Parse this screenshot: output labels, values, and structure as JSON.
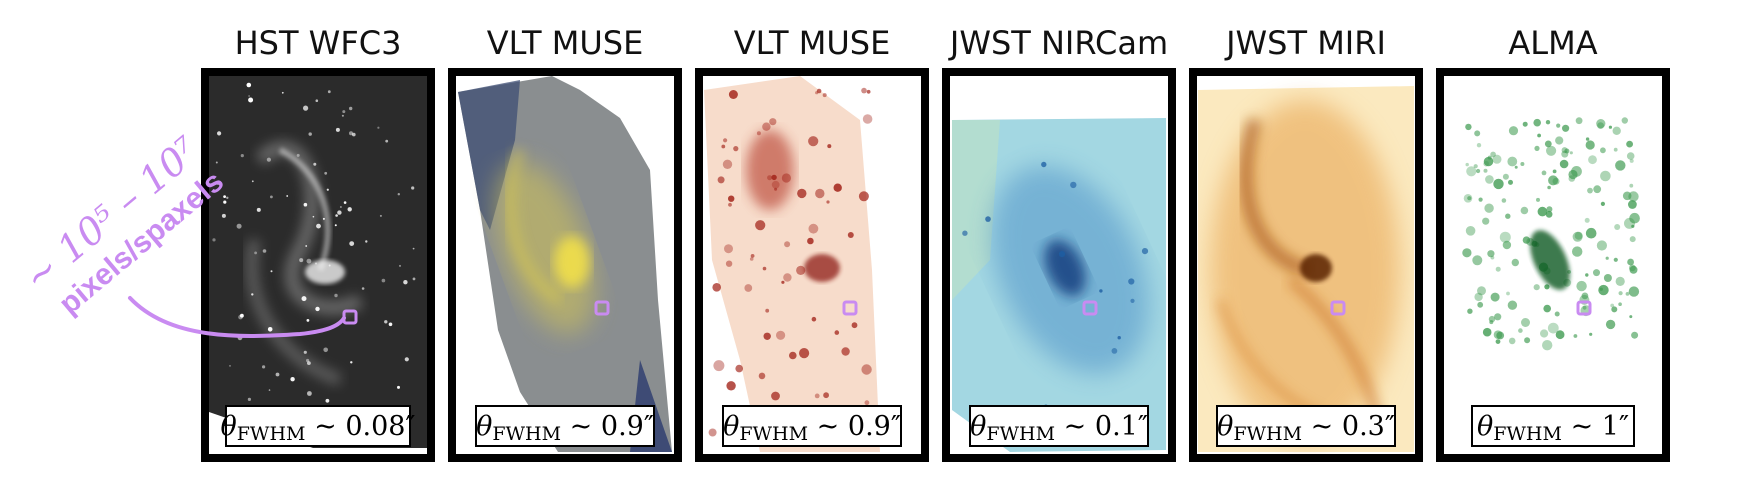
{
  "annotation": {
    "pixel_range": "~ 10⁵ – 10⁷",
    "pixel_label": "pixels/spaxels",
    "marker_color": "#c98bf1"
  },
  "panels": [
    {
      "title": "HST WFC3",
      "resolution": "0.08″",
      "colormap": "greyscale",
      "style": "stars",
      "base_color": "#2a2a2a",
      "bright_color": "#ffffff"
    },
    {
      "title": "VLT MUSE",
      "resolution": "0.9″",
      "colormap": "cividis",
      "style": "smooth",
      "base_color": "#8b8f92",
      "bright_color": "#e6d44a"
    },
    {
      "title": "VLT MUSE",
      "resolution": "0.9″",
      "colormap": "red-white",
      "style": "clumpy",
      "base_color": "#f6d9c8",
      "bright_color": "#9e1b12"
    },
    {
      "title": "JWST NIRCam",
      "resolution": "0.1″",
      "colormap": "blue-green",
      "style": "smooth",
      "base_color": "#8fcde0",
      "bright_color": "#0f3f82"
    },
    {
      "title": "JWST MIRI",
      "resolution": "0.3″",
      "colormap": "orange-white",
      "style": "filament",
      "base_color": "#f6cf8d",
      "bright_color": "#6e2a05"
    },
    {
      "title": "ALMA",
      "resolution": "1″",
      "colormap": "green-white",
      "style": "patchy",
      "base_color": "#ffffff",
      "bright_color": "#0f6a2c"
    }
  ],
  "resolution_symbol": "θ",
  "resolution_subscript": "FWHM",
  "resolution_relation": "~"
}
